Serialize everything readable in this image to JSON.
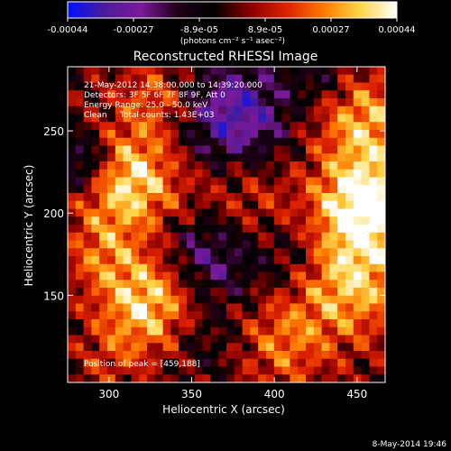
{
  "chart_data": {
    "type": "heatmap",
    "title": "Reconstructed RHESSI Image",
    "xlabel": "Heliocentric X (arcsec)",
    "ylabel": "Heliocentric Y (arcsec)",
    "xlim": [
      275,
      467
    ],
    "ylim": [
      97,
      289
    ],
    "x_ticks": [
      300,
      350,
      400,
      450
    ],
    "y_ticks": [
      150,
      200,
      250
    ],
    "colorbar": {
      "vmin": -0.00044,
      "vmax": 0.00044,
      "ticks": [
        "-0.00044",
        "-0.00027",
        "-8.9e-05",
        "8.9e-05",
        "0.00027",
        "0.00044"
      ],
      "label": "(photons cm⁻² s⁻¹ asec⁻²)",
      "colors": [
        "#0010ff",
        "#4a1c9a",
        "#7b1a9a",
        "#200018",
        "#000000",
        "#8a0000",
        "#dd2200",
        "#ff7a00",
        "#ffd64a",
        "#ffffff"
      ]
    },
    "annotation_lines": [
      "21-May-2012 14:38:00.000 to 14:39:20.000",
      "Detectors: 3F 5F 6F 7F 8F 9F, Att 0",
      "Energy Range: 25.0 - 50.0 keV",
      "Clean     Total counts: 1.43E+03"
    ],
    "position_label": "Position of peak = [459,188]",
    "grid_size": 40,
    "blobs": [
      {
        "x": 310,
        "y": 220,
        "r": 22,
        "v": 0.0004
      },
      {
        "x": 325,
        "y": 145,
        "r": 22,
        "v": 0.00038
      },
      {
        "x": 455,
        "y": 205,
        "r": 20,
        "v": 0.00044
      },
      {
        "x": 445,
        "y": 160,
        "r": 26,
        "v": 0.00034
      },
      {
        "x": 455,
        "y": 255,
        "r": 22,
        "v": 0.0003
      },
      {
        "x": 330,
        "y": 270,
        "r": 18,
        "v": 0.0002
      },
      {
        "x": 380,
        "y": 205,
        "r": 26,
        "v": 0.00018
      },
      {
        "x": 295,
        "y": 175,
        "r": 16,
        "v": 0.00016
      },
      {
        "x": 405,
        "y": 120,
        "r": 20,
        "v": 0.0002
      },
      {
        "x": 300,
        "y": 110,
        "r": 14,
        "v": 0.0001
      },
      {
        "x": 360,
        "y": 175,
        "r": 20,
        "v": -0.0003
      },
      {
        "x": 375,
        "y": 258,
        "r": 24,
        "v": -0.00036
      },
      {
        "x": 285,
        "y": 230,
        "r": 14,
        "v": -0.0003
      },
      {
        "x": 410,
        "y": 175,
        "r": 18,
        "v": -0.00018
      },
      {
        "x": 355,
        "y": 125,
        "r": 18,
        "v": -0.00012
      },
      {
        "x": 430,
        "y": 285,
        "r": 14,
        "v": -0.00012
      }
    ]
  },
  "footer": {
    "timestamp": "8-May-2014 19:46"
  }
}
